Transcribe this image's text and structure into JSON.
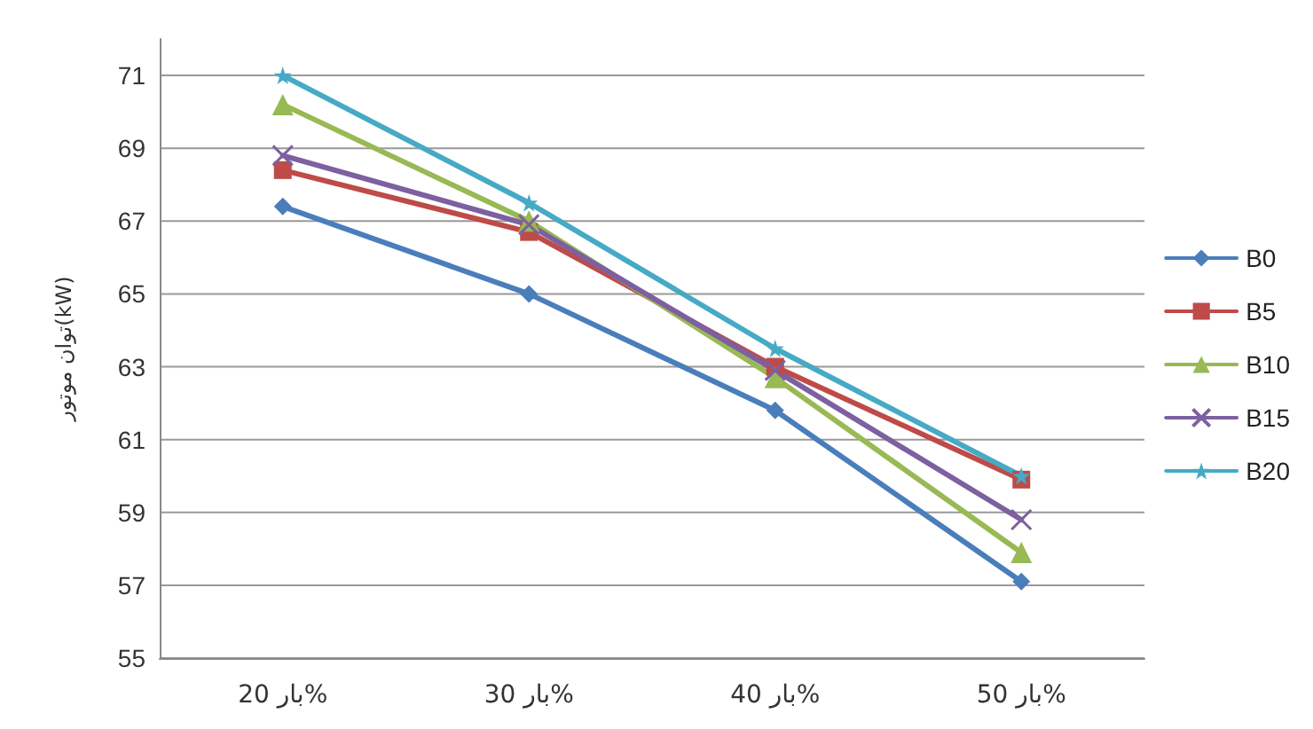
{
  "chart_data": {
    "type": "line",
    "ylabel": "توان موتور(kW)",
    "categories": [
      "بار 20%",
      "بار 30%",
      "بار 40%",
      "بار 50%"
    ],
    "series": [
      {
        "name": "B0",
        "color": "#4a7ebb",
        "marker": "diamond",
        "values": [
          67.4,
          65.0,
          61.8,
          57.1
        ]
      },
      {
        "name": "B5",
        "color": "#be4b48",
        "marker": "square",
        "values": [
          68.4,
          66.7,
          63.0,
          59.9
        ]
      },
      {
        "name": "B10",
        "color": "#98b954",
        "marker": "triangle",
        "values": [
          70.2,
          67.0,
          62.7,
          57.9
        ]
      },
      {
        "name": "B15",
        "color": "#7d60a0",
        "marker": "cross",
        "values": [
          68.8,
          66.9,
          62.9,
          58.8
        ]
      },
      {
        "name": "B20",
        "color": "#46aac5",
        "marker": "star",
        "values": [
          71.0,
          67.5,
          63.5,
          60.0
        ]
      }
    ],
    "ylim": [
      55,
      72
    ],
    "yticks": [
      55,
      57,
      59,
      61,
      63,
      65,
      67,
      69,
      71
    ],
    "grid": "y",
    "legend": "right"
  }
}
